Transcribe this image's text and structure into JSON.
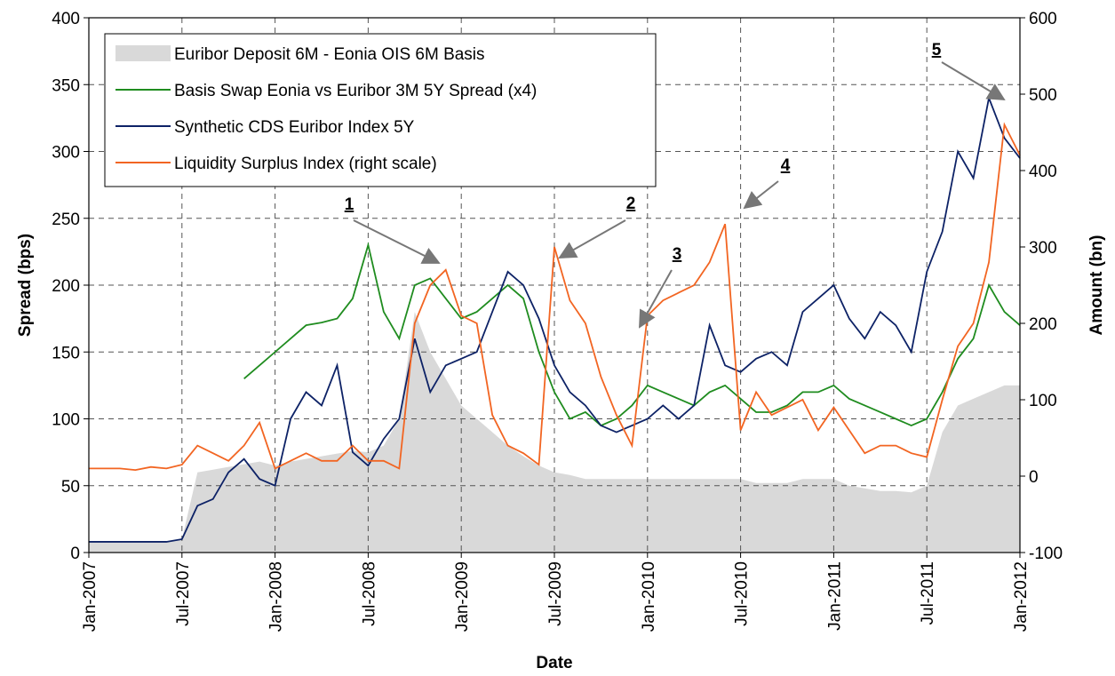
{
  "chart_data": {
    "type": "line",
    "x_label": "Date",
    "y_label": "Spread (bps)",
    "y2_label": "Amount (bn)",
    "x": [
      "2007-01",
      "2007-02",
      "2007-03",
      "2007-04",
      "2007-05",
      "2007-06",
      "2007-07",
      "2007-08",
      "2007-09",
      "2007-10",
      "2007-11",
      "2007-12",
      "2008-01",
      "2008-02",
      "2008-03",
      "2008-04",
      "2008-05",
      "2008-06",
      "2008-07",
      "2008-08",
      "2008-09",
      "2008-10",
      "2008-11",
      "2008-12",
      "2009-01",
      "2009-02",
      "2009-03",
      "2009-04",
      "2009-05",
      "2009-06",
      "2009-07",
      "2009-08",
      "2009-09",
      "2009-10",
      "2009-11",
      "2009-12",
      "2010-01",
      "2010-02",
      "2010-03",
      "2010-04",
      "2010-05",
      "2010-06",
      "2010-07",
      "2010-08",
      "2010-09",
      "2010-10",
      "2010-11",
      "2010-12",
      "2011-01",
      "2011-02",
      "2011-03",
      "2011-04",
      "2011-05",
      "2011-06",
      "2011-07",
      "2011-08",
      "2011-09",
      "2011-10",
      "2011-11",
      "2011-12",
      "2012-01"
    ],
    "series": [
      {
        "name": "Euribor Deposit 6M - Eonia OIS 6M Basis",
        "kind": "area",
        "color": "#d9d9d9",
        "axis": "y",
        "values": [
          8,
          8,
          8,
          8,
          8,
          8,
          10,
          60,
          62,
          64,
          66,
          68,
          65,
          68,
          70,
          72,
          74,
          76,
          75,
          80,
          100,
          180,
          150,
          130,
          110,
          100,
          90,
          80,
          72,
          65,
          60,
          58,
          55,
          55,
          55,
          55,
          55,
          55,
          55,
          55,
          55,
          55,
          55,
          52,
          52,
          52,
          55,
          55,
          55,
          50,
          48,
          46,
          46,
          45,
          50,
          90,
          110,
          115,
          120,
          125,
          125
        ]
      },
      {
        "name": "Basis Swap Eonia vs Euribor 3M 5Y Spread (x4)",
        "kind": "line",
        "color": "#1f8c1f",
        "axis": "y",
        "values": [
          null,
          null,
          null,
          null,
          null,
          null,
          null,
          null,
          null,
          null,
          130,
          140,
          150,
          160,
          170,
          172,
          175,
          190,
          230,
          180,
          160,
          200,
          205,
          190,
          175,
          180,
          190,
          200,
          190,
          150,
          120,
          100,
          105,
          95,
          100,
          110,
          125,
          120,
          115,
          110,
          120,
          125,
          115,
          105,
          105,
          110,
          120,
          120,
          125,
          115,
          110,
          105,
          100,
          95,
          100,
          120,
          145,
          160,
          200,
          180,
          170
        ]
      },
      {
        "name": "Synthetic CDS Euribor Index 5Y",
        "kind": "line",
        "color": "#0d2266",
        "axis": "y",
        "values": [
          8,
          8,
          8,
          8,
          8,
          8,
          10,
          35,
          40,
          60,
          70,
          55,
          50,
          100,
          120,
          110,
          140,
          75,
          65,
          85,
          100,
          160,
          120,
          140,
          145,
          150,
          180,
          210,
          200,
          175,
          140,
          120,
          110,
          95,
          90,
          95,
          100,
          110,
          100,
          110,
          170,
          140,
          135,
          145,
          150,
          140,
          180,
          190,
          200,
          175,
          160,
          180,
          170,
          150,
          210,
          240,
          300,
          280,
          340,
          310,
          295
        ]
      },
      {
        "name": "Liquidity Surplus Index (right scale)",
        "kind": "line",
        "color": "#f26522",
        "axis": "y2",
        "values": [
          10,
          10,
          10,
          8,
          12,
          10,
          15,
          40,
          30,
          20,
          40,
          70,
          10,
          20,
          30,
          20,
          20,
          40,
          20,
          20,
          10,
          200,
          250,
          270,
          210,
          200,
          80,
          40,
          30,
          15,
          300,
          230,
          200,
          130,
          80,
          40,
          210,
          230,
          240,
          250,
          280,
          330,
          60,
          110,
          80,
          90,
          100,
          60,
          90,
          60,
          30,
          40,
          40,
          30,
          25,
          100,
          170,
          200,
          280,
          460,
          420
        ]
      }
    ],
    "annotations": [
      "1",
      "2",
      "3",
      "4",
      "5"
    ],
    "xlim": [
      "2007-01",
      "2012-01"
    ],
    "xticks": [
      {
        "value": "2007-01",
        "label": "Jan-2007"
      },
      {
        "value": "2007-07",
        "label": "Jul-2007"
      },
      {
        "value": "2008-01",
        "label": "Jan-2008"
      },
      {
        "value": "2008-07",
        "label": "Jul-2008"
      },
      {
        "value": "2009-01",
        "label": "Jan-2009"
      },
      {
        "value": "2009-07",
        "label": "Jul-2009"
      },
      {
        "value": "2010-01",
        "label": "Jan-2010"
      },
      {
        "value": "2010-07",
        "label": "Jul-2010"
      },
      {
        "value": "2011-01",
        "label": "Jan-2011"
      },
      {
        "value": "2011-07",
        "label": "Jul-2011"
      },
      {
        "value": "2012-01",
        "label": "Jan-2012"
      }
    ],
    "ylim": [
      0,
      400
    ],
    "yticks": [
      0,
      50,
      100,
      150,
      200,
      250,
      300,
      350,
      400
    ],
    "y2lim": [
      -100,
      600
    ],
    "y2ticks": [
      -100,
      0,
      100,
      200,
      300,
      400,
      500,
      600
    ],
    "grid": true,
    "legend": "upper left"
  }
}
